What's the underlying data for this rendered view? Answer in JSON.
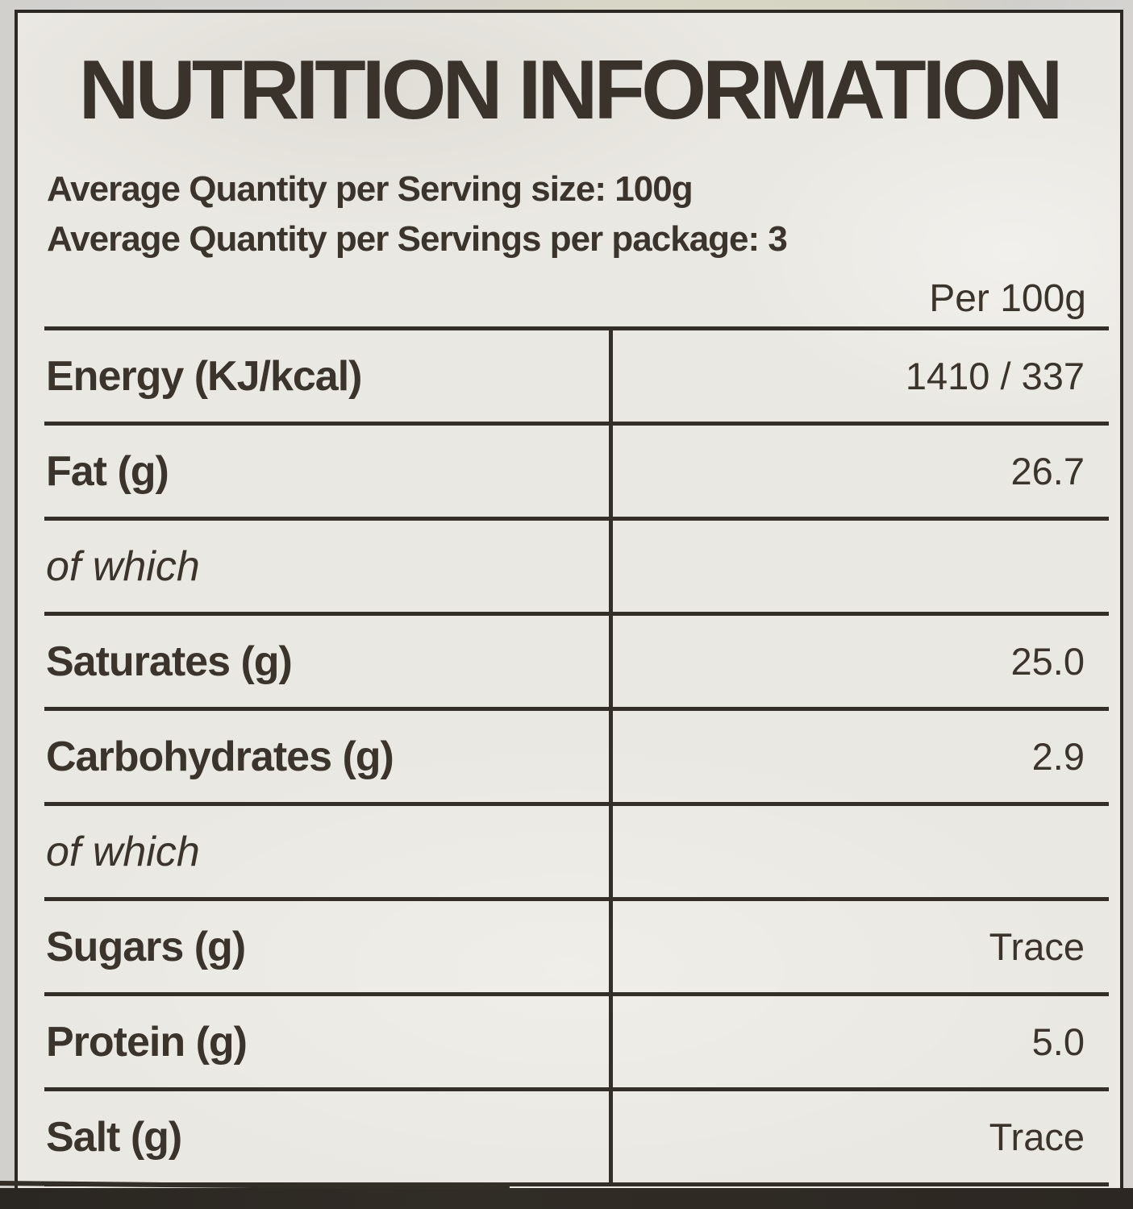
{
  "title": "NUTRITION INFORMATION",
  "serving_info": {
    "line1": "Average Quantity per Serving size: 100g",
    "line2": "Average Quantity per Servings per package: 3"
  },
  "column_header": "Per 100g",
  "table": {
    "rows": [
      {
        "label": "Energy (KJ/kcal)",
        "value": "1410 / 337"
      },
      {
        "label": "Fat (g)",
        "value": "26.7"
      },
      {
        "label": "of which",
        "value": ""
      },
      {
        "label": "Saturates (g)",
        "value": "25.0"
      },
      {
        "label": "Carbohydrates (g)",
        "value": "2.9"
      },
      {
        "label": "of which",
        "value": ""
      },
      {
        "label": "Sugars (g)",
        "value": "Trace"
      },
      {
        "label": "Protein (g)",
        "value": "5.0"
      },
      {
        "label": "Salt (g)",
        "value": "Trace"
      }
    ]
  },
  "colors": {
    "label_background": "#eae8e2",
    "text": "#3b342c",
    "rule": "#332e27",
    "film_background": "#d3d1ce",
    "bottom_band": "#2c2722"
  }
}
